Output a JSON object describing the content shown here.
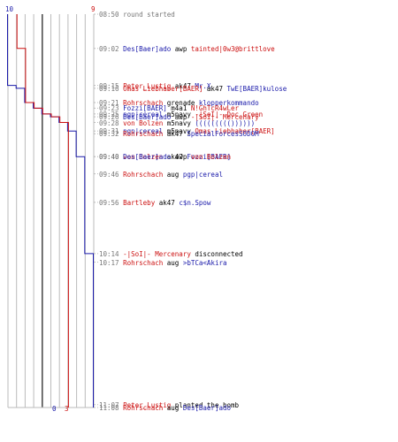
{
  "colors": {
    "blue_team": "#1a1aaa",
    "red_team": "#cc1111",
    "neutral": "#777777"
  },
  "scores": {
    "blue_start": "10",
    "red_start": "9",
    "blue_end": "0",
    "red_end": "3"
  },
  "chart_data": {
    "type": "line",
    "x_unit": "time",
    "series": [
      {
        "team": "blue",
        "points": [
          [
            "08:50",
            10
          ],
          [
            "09:15",
            9
          ],
          [
            "09:16",
            8
          ],
          [
            "09:21",
            7
          ],
          [
            "09:23",
            6
          ],
          [
            "09:25",
            5
          ],
          [
            "09:26",
            4
          ],
          [
            "09:28",
            3
          ],
          [
            "09:31",
            2
          ],
          [
            "09:40",
            1
          ],
          [
            "10:14",
            0
          ],
          [
            "11:08",
            0
          ]
        ]
      },
      {
        "team": "red",
        "points": [
          [
            "08:50",
            9
          ],
          [
            "09:02",
            8
          ],
          [
            "09:21",
            7
          ],
          [
            "09:23",
            6
          ],
          [
            "09:25",
            5
          ],
          [
            "09:26",
            4
          ],
          [
            "09:28",
            3
          ],
          [
            "11:08",
            3
          ]
        ]
      }
    ]
  },
  "events": [
    {
      "time": "08:50",
      "parts": [
        [
          "round started",
          "grey"
        ]
      ]
    },
    {
      "time": "09:02",
      "parts": [
        [
          "Des[Baer]ado",
          "blue"
        ],
        [
          " awp ",
          ""
        ],
        [
          "tainted|0w3@brittlove",
          "red"
        ]
      ]
    },
    {
      "time": "09:15",
      "parts": [
        [
          "Peter_Lustig",
          "red"
        ],
        [
          " ak47 ",
          ""
        ],
        [
          "Mr.X",
          "blue"
        ]
      ]
    },
    {
      "time": "09:16",
      "parts": [
        [
          "Omas Liebhaber[BAER]",
          "red"
        ],
        [
          " ak47 ",
          ""
        ],
        [
          "TwE[BAER]kulose",
          "blue"
        ]
      ]
    },
    {
      "time": "09:21",
      "parts": [
        [
          "Rohrschach",
          "red"
        ],
        [
          " grenade ",
          ""
        ],
        [
          "klopperkommando",
          "blue"
        ]
      ]
    },
    {
      "time": "09:23",
      "parts": [
        [
          "Fozzi[BAER]",
          "blue"
        ],
        [
          " m4a1 ",
          ""
        ],
        [
          "N!GhTcR4wLer",
          "red"
        ]
      ]
    },
    {
      "time": "09:25",
      "parts": [
        [
          "pgp|cereal",
          "blue"
        ],
        [
          " m5navy ",
          ""
        ],
        [
          "-|SoI|- Doc Green",
          "red"
        ]
      ]
    },
    {
      "time": "09:26",
      "parts": [
        [
          "Des[Baer]ado",
          "blue"
        ],
        [
          " awp ",
          ""
        ],
        [
          "-|SoI|- Mercenary",
          "red"
        ]
      ]
    },
    {
      "time": "09:28",
      "parts": [
        [
          "von Bolzen",
          "red"
        ],
        [
          " m5navy ",
          ""
        ],
        [
          "((((((((())))))",
          "blue"
        ]
      ]
    },
    {
      "time": "09:31",
      "parts": [
        [
          "pgp|cereal",
          "blue"
        ],
        [
          " m5navy ",
          ""
        ],
        [
          "Omas Liebhaber[BAER]",
          "red"
        ]
      ]
    },
    {
      "time": "09:32",
      "parts": [
        [
          "Rohrschach",
          "red"
        ],
        [
          " ak47 ",
          ""
        ],
        [
          "SpecialForcesSODOM",
          "blue"
        ]
      ]
    },
    {
      "time": "09:40",
      "parts": [
        [
          "von Bolzen",
          "red"
        ],
        [
          " ak47 ",
          ""
        ],
        [
          "Fozzi[BAER]",
          "blue"
        ]
      ]
    },
    {
      "time": "09:40",
      "parts": [
        [
          "Des[Baer]ado",
          "blue"
        ],
        [
          " awp ",
          ""
        ],
        [
          "von Bolzen",
          "red"
        ]
      ]
    },
    {
      "time": "09:46",
      "parts": [
        [
          "Rohrschach",
          "red"
        ],
        [
          " aug ",
          ""
        ],
        [
          "pgp|cereal",
          "blue"
        ]
      ]
    },
    {
      "time": "09:56",
      "parts": [
        [
          "Bartleby",
          "red"
        ],
        [
          " ak47 ",
          ""
        ],
        [
          "c$n.Spow",
          "blue"
        ]
      ]
    },
    {
      "time": "10:14",
      "parts": [
        [
          "-|SoI|- Mercenary",
          "red"
        ],
        [
          " disconnected",
          ""
        ]
      ]
    },
    {
      "time": "10:17",
      "parts": [
        [
          "Rohrschach",
          "red"
        ],
        [
          " aug ",
          ""
        ],
        [
          ">bTCa<Akira",
          "blue"
        ]
      ]
    },
    {
      "time": "11:07",
      "parts": [
        [
          "Peter_Lustig",
          "red"
        ],
        [
          " planted the bomb",
          ""
        ]
      ]
    },
    {
      "time": "11:08",
      "parts": [
        [
          "Rohrschach",
          "red"
        ],
        [
          " aug ",
          ""
        ],
        [
          "Des[Baer]ado",
          "blue"
        ]
      ]
    }
  ]
}
